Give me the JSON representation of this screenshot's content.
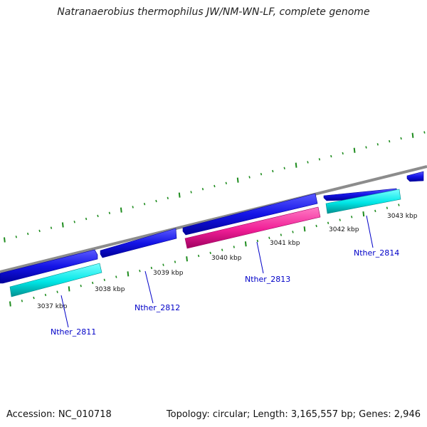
{
  "title": "Natranaerobius thermophilus JW/NM-WN-LF, complete genome",
  "footer": {
    "accession": "Accession: NC_010718",
    "topology": "Topology: circular; Length: 3,165,557 bp; Genes: 2,946"
  },
  "colors": {
    "backbone": "#8c8c8c",
    "forward_gene": "#1414e6",
    "rrna": "#00e6e6",
    "trna_other": "#f01e96",
    "tick": "#1e8c1e",
    "gene_label": "#0000c8"
  },
  "scale_ticks": [
    "3037 kbp",
    "3038 kbp",
    "3039 kbp",
    "3040 kbp",
    "3041 kbp",
    "3042 kbp",
    "3043 kbp"
  ],
  "gene_labels": [
    "Nther_2811",
    "Nther_2812",
    "Nther_2813",
    "Nther_2814"
  ]
}
